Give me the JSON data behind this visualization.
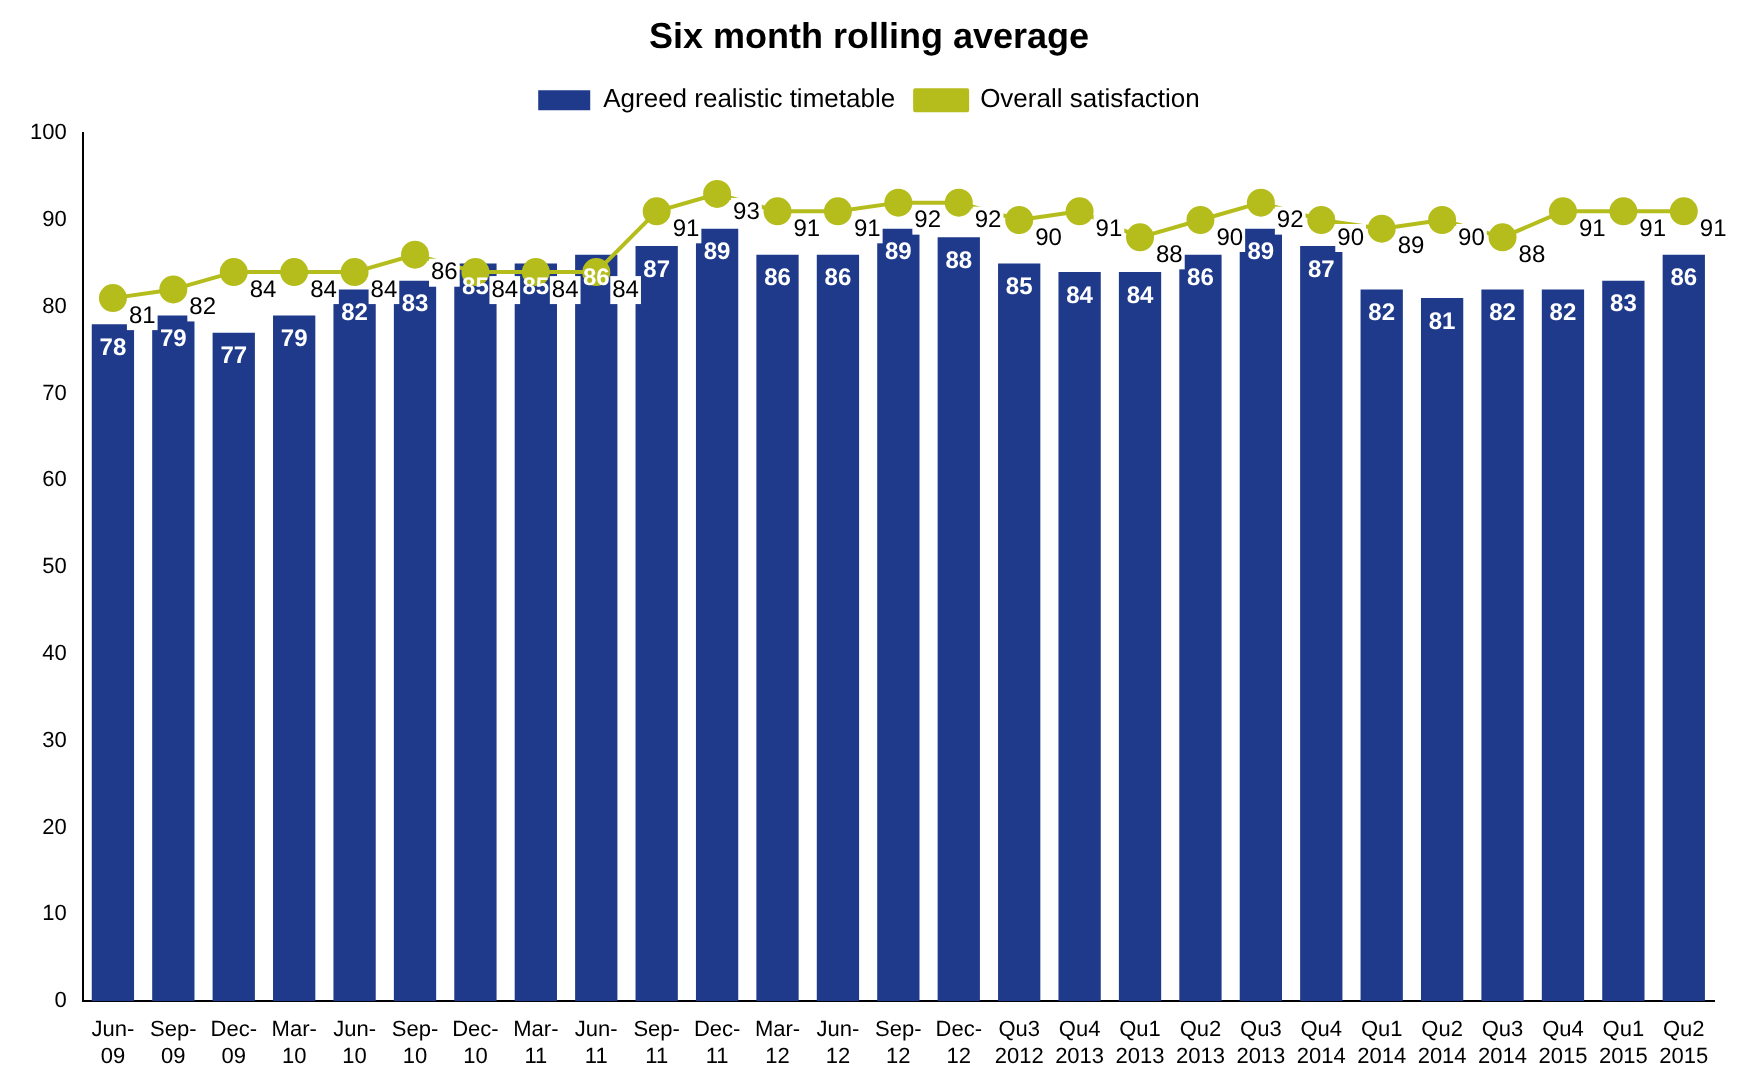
{
  "chart_data": {
    "type": "bar",
    "title": "Six month rolling average",
    "categories": [
      "Jun-09",
      "Sep-09",
      "Dec-09",
      "Mar-10",
      "Jun-10",
      "Sep-10",
      "Dec-10",
      "Mar-11",
      "Jun-11",
      "Sep-11",
      "Dec-11",
      "Mar-12",
      "Jun-12",
      "Sep-12",
      "Dec-12",
      "Qu3 2012",
      "Qu4 2013",
      "Qu1 2013",
      "Qu2 2013",
      "Qu3 2013",
      "Qu4 2014",
      "Qu1 2014",
      "Qu2 2014",
      "Qu3 2014",
      "Qu4 2015",
      "Qu1 2015",
      "Qu2 2015"
    ],
    "series": [
      {
        "name": "Agreed realistic timetable",
        "color": "#1f3a8a",
        "values": [
          78,
          79,
          77,
          79,
          82,
          83,
          85,
          85,
          86,
          87,
          89,
          86,
          86,
          89,
          88,
          85,
          84,
          84,
          86,
          89,
          87,
          82,
          81,
          82,
          82,
          83,
          86
        ]
      },
      {
        "name": "Overall satisfaction",
        "type": "line",
        "color": "#b5bd1c",
        "marker": "circle",
        "values": [
          81,
          82,
          84,
          84,
          84,
          86,
          84,
          84,
          84,
          91,
          93,
          91,
          91,
          92,
          92,
          90,
          91,
          88,
          90,
          92,
          90,
          89,
          90,
          88,
          91,
          91,
          91
        ]
      }
    ],
    "ylim": [
      0,
      100
    ],
    "yticks": [
      0,
      10,
      20,
      30,
      40,
      50,
      60,
      70,
      80,
      90,
      100
    ],
    "grid": false,
    "legend": "top",
    "data_labels": true
  }
}
